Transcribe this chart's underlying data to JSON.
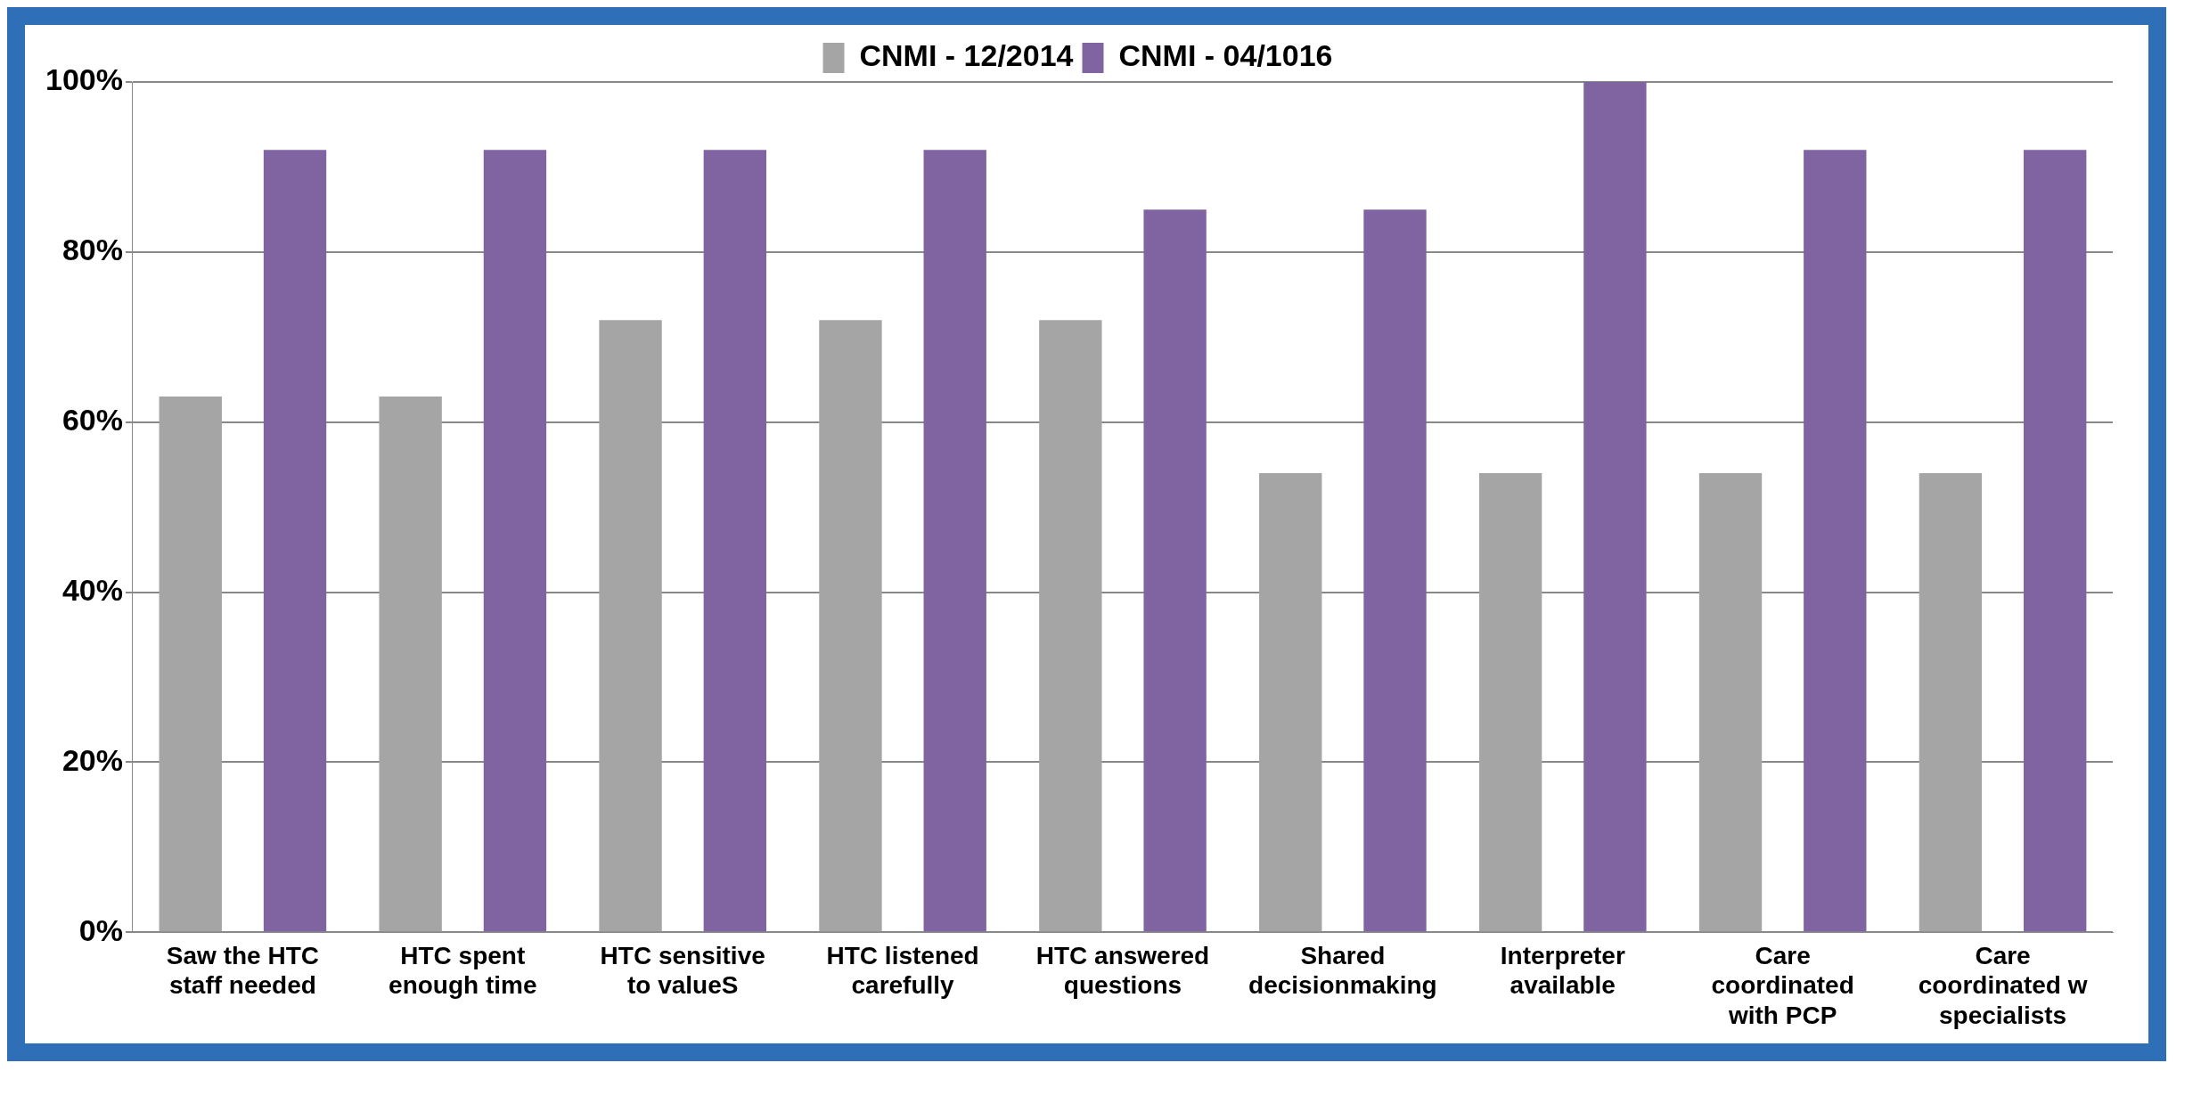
{
  "chart_data": {
    "type": "bar",
    "categories": [
      "Saw the HTC staff needed",
      "HTC spent enough time",
      "HTC sensitive to valueS",
      "HTC listened carefully",
      "HTC answered questions",
      "Shared decisionmaking",
      "Interpreter available",
      "Care coordinated with PCP",
      "Care coordinated w specialists"
    ],
    "series": [
      {
        "name": "CNMI - 12/2014",
        "color": "#a5a5a5",
        "values": [
          63,
          63,
          72,
          72,
          72,
          54,
          54,
          54,
          54
        ]
      },
      {
        "name": "CNMI - 04/1016",
        "color": "#8064a2",
        "values": [
          92,
          92,
          92,
          92,
          85,
          85,
          100,
          92,
          92
        ]
      }
    ],
    "ylim": [
      0,
      100
    ],
    "yticks": [
      {
        "value": 0,
        "label": "0%"
      },
      {
        "value": 20,
        "label": "20%"
      },
      {
        "value": 40,
        "label": "40%"
      },
      {
        "value": 60,
        "label": "60%"
      },
      {
        "value": 80,
        "label": "80%"
      },
      {
        "value": 100,
        "label": "100%"
      }
    ],
    "grid": "y",
    "legend": "top"
  }
}
